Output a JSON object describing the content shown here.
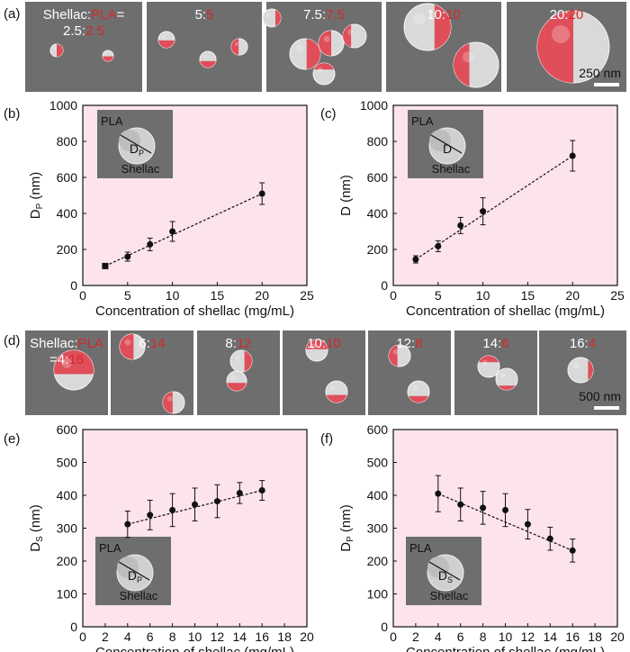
{
  "panels": {
    "a": {
      "label": "(a)",
      "images": [
        {
          "prefix": "Shellac:",
          "red": "PLA",
          "suffix": "=",
          "line2_black": "2.5:",
          "line2_red": "2.5"
        },
        {
          "black": "5:",
          "red": "5"
        },
        {
          "black": "7.5:",
          "red": "7.5"
        },
        {
          "black": "10:",
          "red": "10"
        },
        {
          "black": "20:",
          "red": "20"
        }
      ],
      "scale_bar": "250 nm"
    },
    "d": {
      "label": "(d)",
      "images": [
        {
          "prefix": "Shellac:",
          "red": "PLA",
          "suffix": "",
          "line2_black": "=4:",
          "line2_red": "16"
        },
        {
          "black": "6:",
          "red": "14"
        },
        {
          "black": "8:",
          "red": "12"
        },
        {
          "black": "10:",
          "red": "10"
        },
        {
          "black": "12:",
          "red": "8"
        },
        {
          "black": "14:",
          "red": "6"
        },
        {
          "black": "16:",
          "red": "4"
        }
      ],
      "scale_bar": "500 nm"
    }
  },
  "colors": {
    "plot_bg": "#fce4ea",
    "red_label": "#d42a2a",
    "sem_bg": "#6e6e6e",
    "particle": "#d9d9d9",
    "pla_red": "#e0424e"
  },
  "chart_data": [
    {
      "panel": "(b)",
      "type": "scatter",
      "fit_line": true,
      "ylabel_main": "D",
      "ylabel_sub": "P",
      "ylabel_unit": " (nm)",
      "xlabel": "Concentration of shellac (mg/mL)",
      "xlim": [
        0,
        25
      ],
      "ylim": [
        0,
        1000
      ],
      "xticks": [
        0,
        5,
        10,
        15,
        20,
        25
      ],
      "yticks": [
        0,
        200,
        400,
        600,
        800,
        1000
      ],
      "x": [
        2.5,
        5,
        7.5,
        10,
        20
      ],
      "y": [
        108,
        160,
        228,
        300,
        510
      ],
      "err": [
        10,
        25,
        35,
        55,
        60
      ],
      "inset": {
        "pla": "PLA",
        "dim_main": "D",
        "dim_sub": "P",
        "shellac": "Shellac"
      }
    },
    {
      "panel": "(c)",
      "type": "scatter",
      "fit_line": true,
      "ylabel_main": "D",
      "ylabel_sub": "",
      "ylabel_unit": " (nm)",
      "xlabel": "Concentration of shellac (mg/mL)",
      "xlim": [
        0,
        25
      ],
      "ylim": [
        0,
        1000
      ],
      "xticks": [
        0,
        5,
        10,
        15,
        20,
        25
      ],
      "yticks": [
        0,
        200,
        400,
        600,
        800,
        1000
      ],
      "x": [
        2.5,
        5,
        7.5,
        10,
        20
      ],
      "y": [
        145,
        218,
        333,
        412,
        720
      ],
      "err": [
        20,
        30,
        45,
        75,
        85
      ],
      "inset": {
        "pla": "PLA",
        "dim_main": "D",
        "dim_sub": "",
        "shellac": "Shellac"
      }
    },
    {
      "panel": "(e)",
      "type": "scatter",
      "fit_line": true,
      "ylabel_main": "D",
      "ylabel_sub": "S",
      "ylabel_unit": " (nm)",
      "xlabel": "Concentration of shellac (mg/mL)",
      "xlim": [
        0,
        20
      ],
      "ylim": [
        0,
        600
      ],
      "xticks": [
        0,
        2,
        4,
        6,
        8,
        10,
        12,
        14,
        16,
        18,
        20
      ],
      "yticks": [
        0,
        100,
        200,
        300,
        400,
        500,
        600
      ],
      "x": [
        4,
        6,
        8,
        10,
        12,
        14,
        16
      ],
      "y": [
        312,
        340,
        355,
        372,
        382,
        407,
        415
      ],
      "err": [
        40,
        45,
        50,
        50,
        50,
        32,
        30
      ],
      "inset": {
        "pla": "PLA",
        "dim_main": "D",
        "dim_sub": "P",
        "shellac": "Shellac"
      }
    },
    {
      "panel": "(f)",
      "type": "scatter",
      "fit_line": true,
      "ylabel_main": "D",
      "ylabel_sub": "P",
      "ylabel_unit": " (nm)",
      "xlabel": "Concentration of shellac (mg/mL)",
      "xlim": [
        0,
        20
      ],
      "ylim": [
        0,
        600
      ],
      "xticks": [
        0,
        2,
        4,
        6,
        8,
        10,
        12,
        14,
        16,
        18,
        20
      ],
      "yticks": [
        0,
        100,
        200,
        300,
        400,
        500,
        600
      ],
      "x": [
        4,
        6,
        8,
        10,
        12,
        14,
        16
      ],
      "y": [
        405,
        372,
        362,
        355,
        312,
        268,
        232
      ],
      "err": [
        55,
        50,
        50,
        50,
        45,
        35,
        35
      ],
      "inset": {
        "pla": "PLA",
        "dim_main": "D",
        "dim_sub": "S",
        "shellac": "Shellac"
      }
    }
  ]
}
